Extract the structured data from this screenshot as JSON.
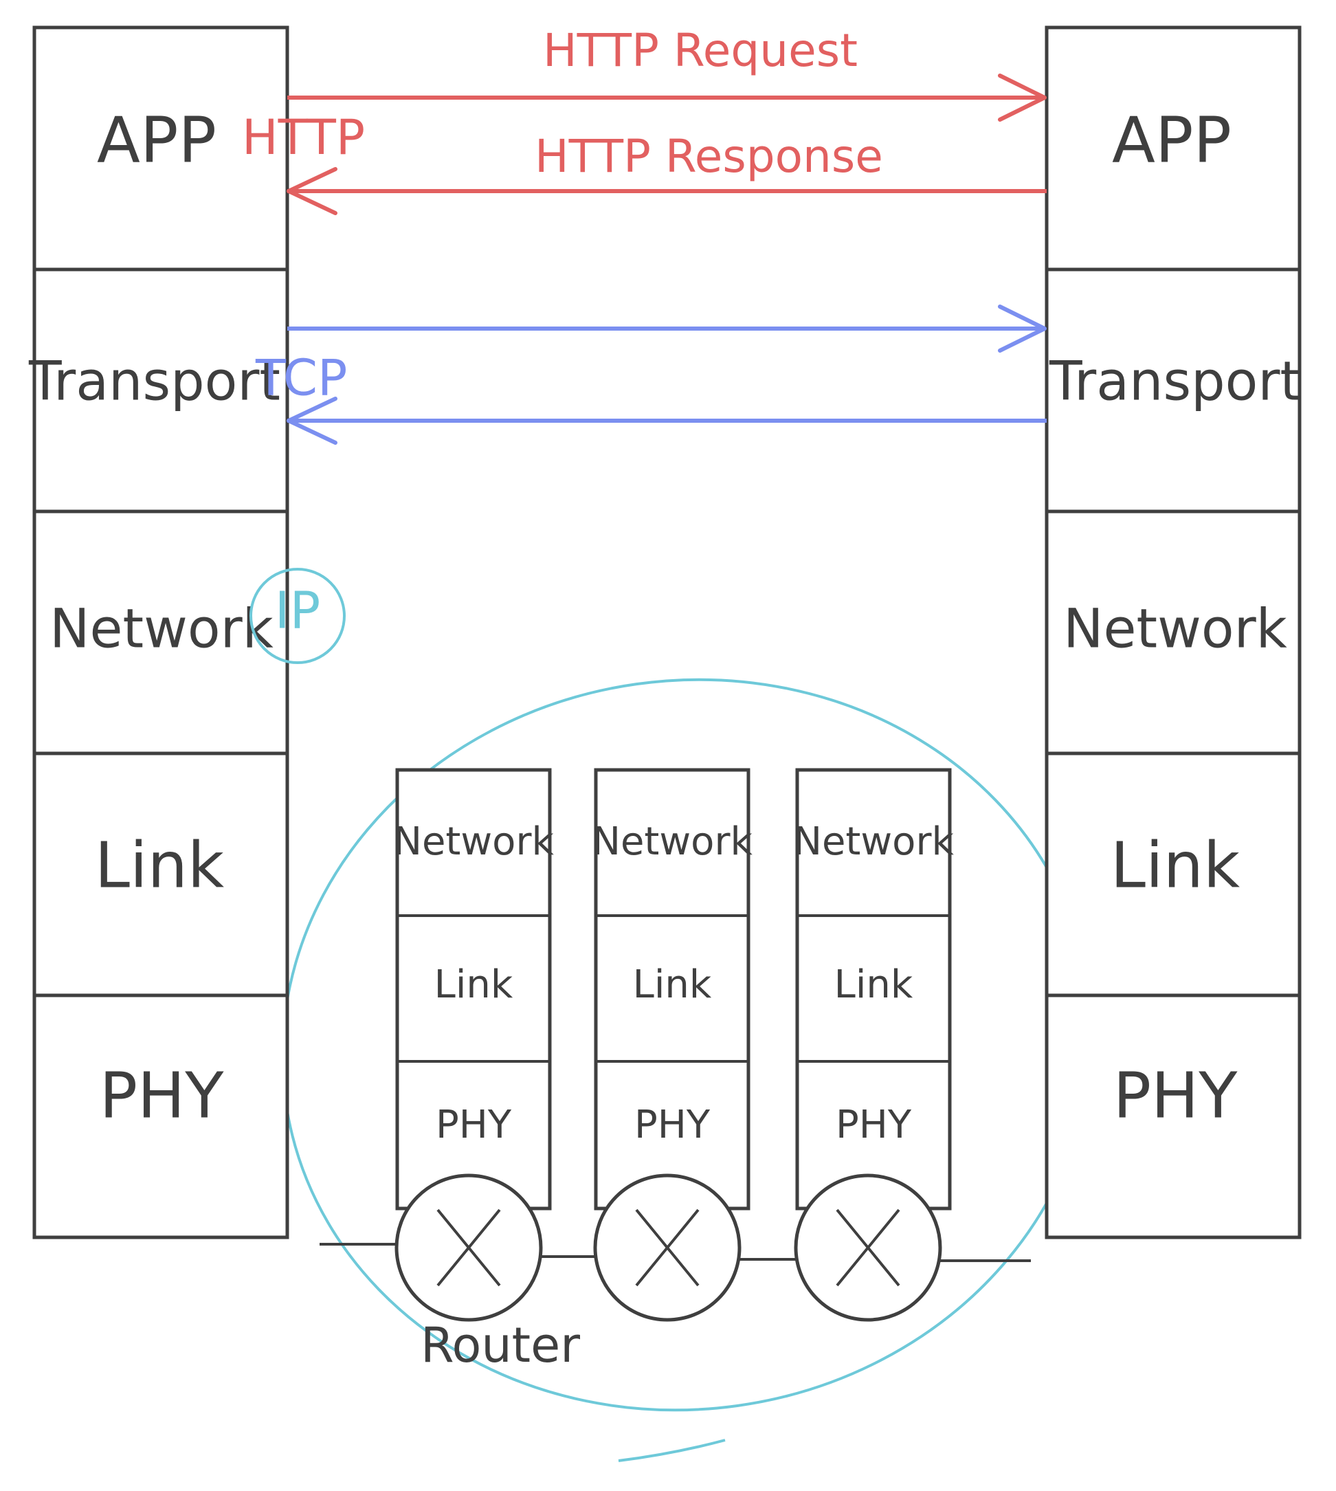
{
  "colors": {
    "ink": "#3f3f3f",
    "http": "#e26060",
    "tcp": "#7b8ff0",
    "ip": "#6ec9d9"
  },
  "left_stack": [
    "APP",
    "Transport",
    "Network",
    "Link",
    "PHY"
  ],
  "right_stack": [
    "APP",
    "Transport",
    "Network",
    "Link",
    "PHY"
  ],
  "http": {
    "label": "HTTP",
    "request_label": "HTTP Request",
    "response_label": "HTTP Response"
  },
  "tcp": {
    "label": "TCP"
  },
  "ip": {
    "label": "IP"
  },
  "routers": [
    {
      "layers": [
        "Network",
        "Link",
        "PHY"
      ]
    },
    {
      "layers": [
        "Network",
        "Link",
        "PHY"
      ]
    },
    {
      "layers": [
        "Network",
        "Link",
        "PHY"
      ]
    }
  ],
  "router_label": "Router"
}
